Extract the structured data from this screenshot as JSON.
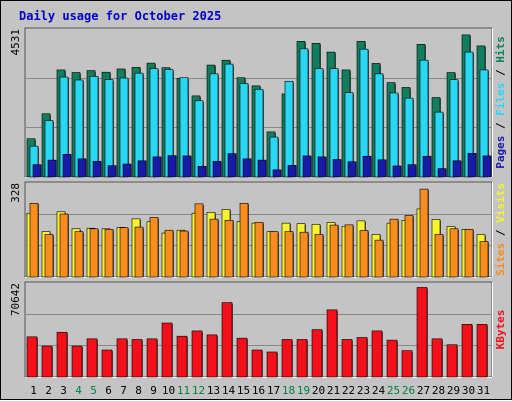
{
  "chart_data": {
    "type": "bar",
    "title": "Daily usage for October 2025",
    "days": [
      "1",
      "2",
      "3",
      "4",
      "5",
      "6",
      "7",
      "8",
      "9",
      "10",
      "11",
      "12",
      "13",
      "14",
      "15",
      "16",
      "17",
      "18",
      "19",
      "20",
      "21",
      "22",
      "23",
      "24",
      "25",
      "26",
      "27",
      "28",
      "29",
      "30",
      "31"
    ],
    "weekend_days": [
      "4",
      "5",
      "11",
      "12",
      "18",
      "19",
      "25",
      "26"
    ],
    "panels": [
      {
        "id": "hits-files-pages",
        "y_max_label": "4531",
        "y_max": 4531,
        "legend": [
          "Pages",
          "/",
          "Files",
          "/",
          "Hits"
        ],
        "series": [
          {
            "name": "Hits",
            "color": "#117e5f",
            "values": [
              1180,
              1950,
              3300,
              3220,
              3280,
              3230,
              3330,
              3380,
              3510,
              3370,
              3040,
              2500,
              3450,
              3600,
              3060,
              2810,
              1390,
              2560,
              4180,
              4120,
              3850,
              3300,
              4180,
              3500,
              2910,
              2760,
              4090,
              2450,
              3220,
              4380,
              4040
            ]
          },
          {
            "name": "Files",
            "color": "#29d7f4",
            "values": [
              950,
              1740,
              3080,
              2990,
              3100,
              3000,
              3050,
              3200,
              3340,
              3310,
              3060,
              2350,
              3180,
              3480,
              2880,
              2700,
              1230,
              2950,
              3950,
              3340,
              3340,
              2600,
              3940,
              3180,
              2590,
              2430,
              3600,
              2000,
              3000,
              3850,
              3300
            ]
          },
          {
            "name": "Pages",
            "color": "#1a1aa8",
            "values": [
              380,
              520,
              700,
              560,
              480,
              350,
              400,
              500,
              620,
              660,
              650,
              330,
              480,
              720,
              560,
              520,
              220,
              360,
              650,
              620,
              540,
              470,
              640,
              530,
              340,
              380,
              640,
              260,
              500,
              730,
              650
            ]
          }
        ]
      },
      {
        "id": "visits-sites",
        "y_max_label": "328",
        "y_max": 328,
        "legend": [
          "Sites",
          "/",
          "Visits"
        ],
        "series": [
          {
            "name": "Visits",
            "color": "#f7f42c",
            "values": [
              225,
              160,
              230,
              170,
              172,
              170,
              175,
              205,
              195,
              155,
              165,
              225,
              228,
              238,
              195,
              190,
              160,
              190,
              188,
              186,
              192,
              178,
              198,
              150,
              190,
              200,
              240,
              203,
              178,
              168,
              150
            ]
          },
          {
            "name": "Sites",
            "color": "#f88c1f",
            "values": [
              260,
              150,
              222,
              160,
              170,
              168,
              174,
              176,
              210,
              165,
              162,
              258,
              204,
              200,
              260,
              193,
              160,
              160,
              158,
              150,
              183,
              184,
              164,
              130,
              204,
              217,
              310,
              150,
              170,
              168,
              125
            ]
          }
        ]
      },
      {
        "id": "kbytes",
        "y_max_label": "70642",
        "y_max": 70642,
        "legend": [
          "KBytes"
        ],
        "series": [
          {
            "name": "KBytes",
            "color": "#f3101a",
            "values": [
              30500,
              23500,
              34000,
              23500,
              29000,
              20500,
              29000,
              28500,
              29000,
              41000,
              31000,
              35000,
              32000,
              56500,
              29500,
              20500,
              19000,
              28500,
              28500,
              36000,
              51000,
              28500,
              30000,
              35000,
              28000,
              20000,
              68000,
              29000,
              24500,
              40000,
              40000
            ]
          }
        ]
      }
    ]
  },
  "colors": {
    "background": "#c4c4c4",
    "plot_bg": "#c4c4c4",
    "title": "#0000c8",
    "weekend_label": "#008040",
    "weekday_label": "#000000"
  }
}
